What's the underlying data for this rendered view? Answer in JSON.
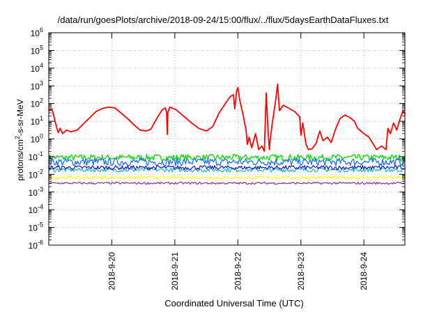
{
  "chart_data": {
    "type": "line",
    "title": "/data/run/goesPlots/archive/2018-09-24/15:00/flux/../flux/5daysEarthDataFluxes.txt",
    "xlabel": "Coordinated Universal Time (UTC)",
    "ylabel": {
      "base": "protons/cm",
      "sup": "2",
      "rest": "-s-sr-MeV"
    },
    "y_scale": "log",
    "ylim_exp": [
      -6,
      6
    ],
    "xlim_days": [
      -1.0,
      4.65
    ],
    "x_ticks": [
      {
        "pos": 0,
        "label": "2018-9-20"
      },
      {
        "pos": 1,
        "label": "2018-9-21"
      },
      {
        "pos": 2,
        "label": "2018-9-22"
      },
      {
        "pos": 3,
        "label": "2018-9-23"
      },
      {
        "pos": 4,
        "label": "2018-9-24"
      }
    ],
    "grid": true,
    "series": [
      {
        "color": "#ff0000",
        "width": 1.8,
        "points": [
          [
            -1.0,
            1.6
          ],
          [
            -0.95,
            1.7
          ],
          [
            -0.92,
            1.3
          ],
          [
            -0.88,
            0.7
          ],
          [
            -0.85,
            0.35
          ],
          [
            -0.82,
            0.6
          ],
          [
            -0.78,
            0.3
          ],
          [
            -0.72,
            0.5
          ],
          [
            -0.65,
            0.4
          ],
          [
            -0.55,
            0.5
          ],
          [
            -0.45,
            0.85
          ],
          [
            -0.35,
            1.2
          ],
          [
            -0.25,
            1.55
          ],
          [
            -0.15,
            1.72
          ],
          [
            -0.05,
            1.8
          ],
          [
            0.05,
            1.75
          ],
          [
            0.15,
            1.45
          ],
          [
            0.25,
            1.15
          ],
          [
            0.35,
            0.8
          ],
          [
            0.45,
            0.5
          ],
          [
            0.55,
            0.45
          ],
          [
            0.62,
            0.55
          ],
          [
            0.72,
            1.2
          ],
          [
            0.8,
            1.65
          ],
          [
            0.85,
            1.75
          ],
          [
            0.87,
            1.5
          ],
          [
            0.88,
            0.25
          ],
          [
            0.89,
            1.5
          ],
          [
            0.92,
            1.8
          ],
          [
            1.02,
            1.65
          ],
          [
            1.12,
            1.35
          ],
          [
            1.25,
            0.95
          ],
          [
            1.38,
            0.6
          ],
          [
            1.5,
            0.45
          ],
          [
            1.6,
            0.7
          ],
          [
            1.7,
            1.45
          ],
          [
            1.8,
            2.0
          ],
          [
            1.88,
            2.4
          ],
          [
            1.93,
            2.5
          ],
          [
            1.95,
            1.7
          ],
          [
            1.98,
            2.7
          ],
          [
            2.0,
            2.9
          ],
          [
            2.03,
            2.2
          ],
          [
            2.08,
            1.4
          ],
          [
            2.13,
            0.5
          ],
          [
            2.15,
            -0.3
          ],
          [
            2.18,
            0.1
          ],
          [
            2.22,
            -0.5
          ],
          [
            2.28,
            0.3
          ],
          [
            2.33,
            -0.6
          ],
          [
            2.38,
            -0.4
          ],
          [
            2.42,
            -0.7
          ],
          [
            2.45,
            2.6
          ],
          [
            2.48,
            0.4
          ],
          [
            2.5,
            -0.6
          ],
          [
            2.52,
            0.2
          ],
          [
            2.55,
            1.0
          ],
          [
            2.6,
            2.2
          ],
          [
            2.63,
            3.1
          ],
          [
            2.66,
            1.6
          ],
          [
            2.72,
            1.9
          ],
          [
            2.8,
            1.75
          ],
          [
            2.9,
            1.55
          ],
          [
            2.98,
            1.25
          ],
          [
            3.0,
            0.2
          ],
          [
            3.03,
            0.9
          ],
          [
            3.08,
            -0.3
          ],
          [
            3.12,
            -0.6
          ],
          [
            3.18,
            -0.55
          ],
          [
            3.24,
            -0.25
          ],
          [
            3.3,
            0.45
          ],
          [
            3.35,
            -0.1
          ],
          [
            3.42,
            0.1
          ],
          [
            3.48,
            -0.2
          ],
          [
            3.55,
            0.55
          ],
          [
            3.62,
            1.15
          ],
          [
            3.7,
            1.35
          ],
          [
            3.78,
            1.2
          ],
          [
            3.85,
            1.0
          ],
          [
            3.9,
            0.6
          ],
          [
            4.0,
            0.3
          ],
          [
            4.08,
            0.1
          ],
          [
            4.15,
            -0.3
          ],
          [
            4.2,
            -0.6
          ],
          [
            4.28,
            -0.4
          ],
          [
            4.35,
            -0.6
          ],
          [
            4.38,
            0.6
          ],
          [
            4.42,
            0.3
          ],
          [
            4.47,
            0.9
          ],
          [
            4.52,
            0.5
          ],
          [
            4.57,
            1.1
          ],
          [
            4.62,
            1.6
          ],
          [
            4.65,
            1.4
          ]
        ]
      },
      {
        "color": "#00dd00",
        "center": -1.05,
        "amp": 0.18,
        "width": 1.3
      },
      {
        "color": "#1e6fff",
        "center": -1.3,
        "amp": 0.22,
        "width": 1.3
      },
      {
        "color": "#00b8b8",
        "center": -1.75,
        "amp": 0.12,
        "width": 1.1
      },
      {
        "color": "#0000cc",
        "center": -1.62,
        "amp": 0.12,
        "width": 1.1
      },
      {
        "color": "#ffff00",
        "center": -2.18,
        "amp": 0.08,
        "width": 1.2
      },
      {
        "color": "#8b2d8b",
        "center": -2.5,
        "amp": 0.06,
        "width": 1.2
      }
    ]
  }
}
